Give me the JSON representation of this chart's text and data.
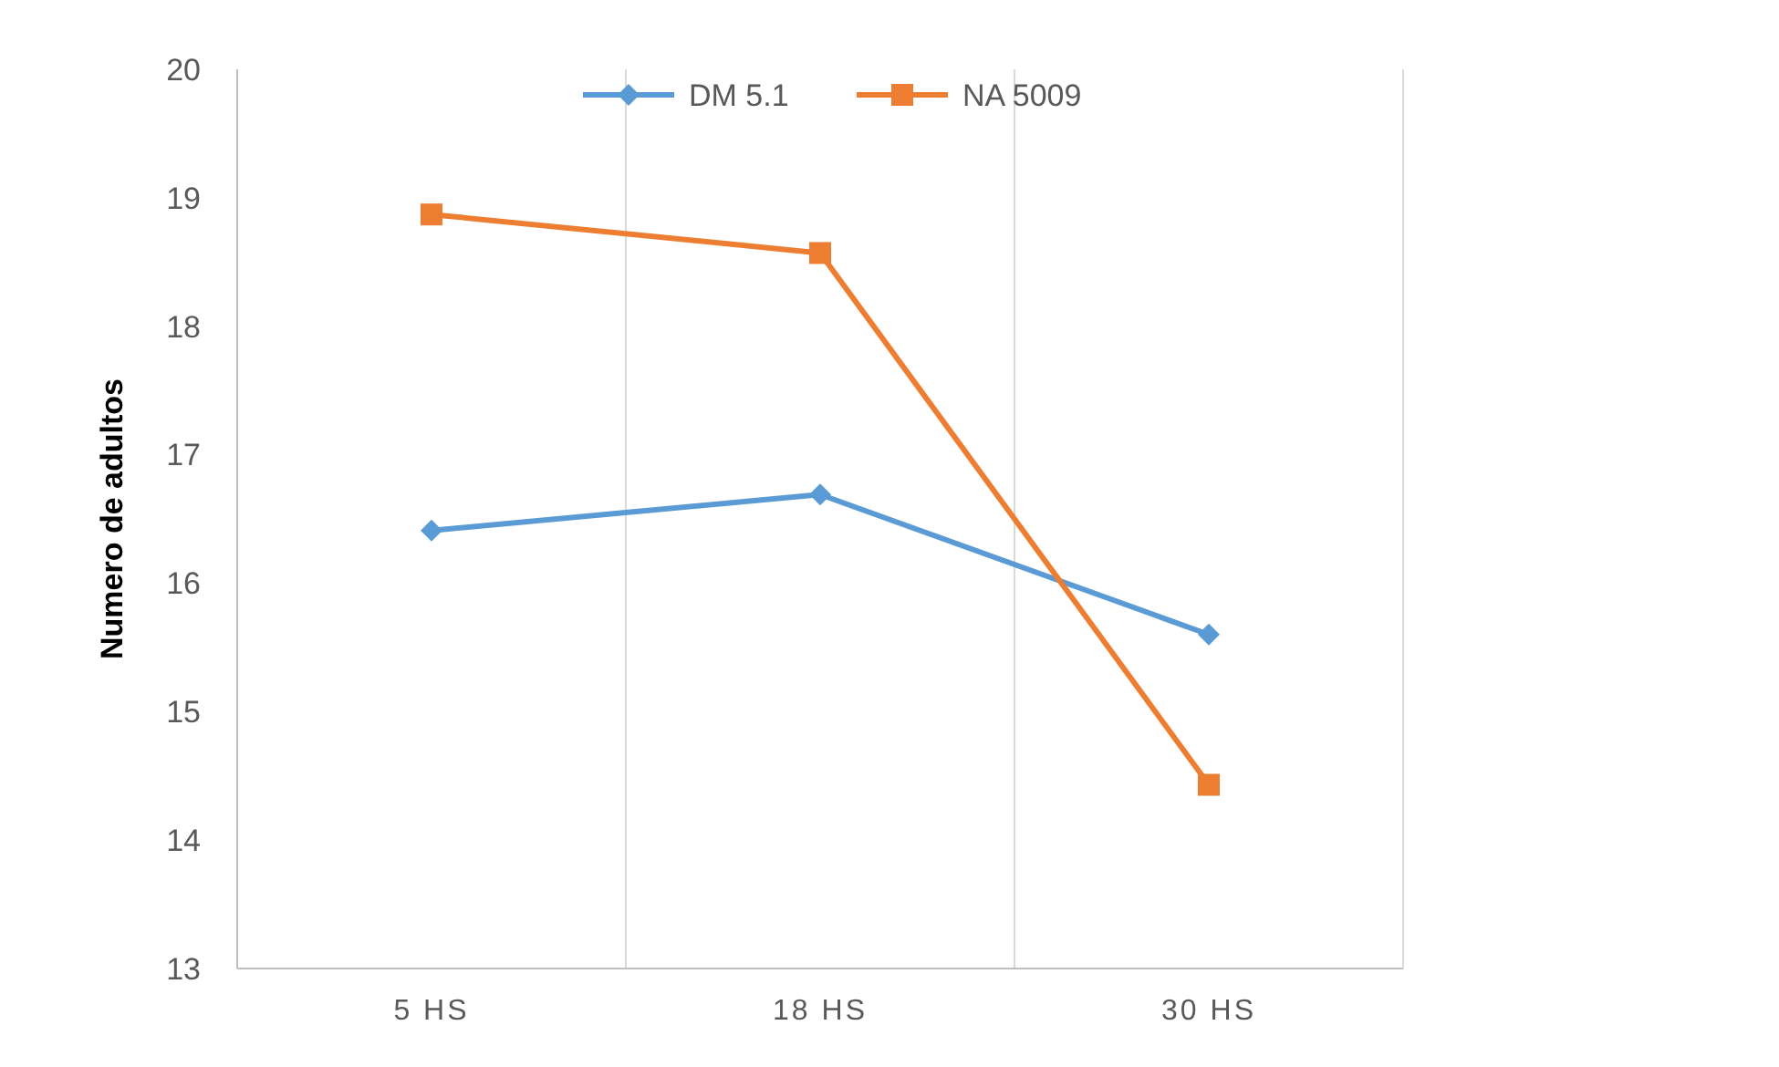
{
  "chart_data": {
    "type": "line",
    "ylabel": "Numero de adultos",
    "categories": [
      "5 HS",
      "18 HS",
      "30 HS"
    ],
    "series": [
      {
        "name": "DM 5.1",
        "color": "#5b9bd5",
        "values": [
          16.41,
          16.69,
          15.6
        ],
        "marker": "diamond"
      },
      {
        "name": "NA 5009",
        "color": "#ed7d31",
        "values": [
          18.87,
          18.57,
          14.43
        ],
        "marker": "square"
      }
    ],
    "ylim": [
      13,
      20
    ],
    "yticks": [
      13,
      14,
      15,
      16,
      17,
      18,
      19,
      20
    ],
    "grid": "x",
    "legend": "top"
  }
}
